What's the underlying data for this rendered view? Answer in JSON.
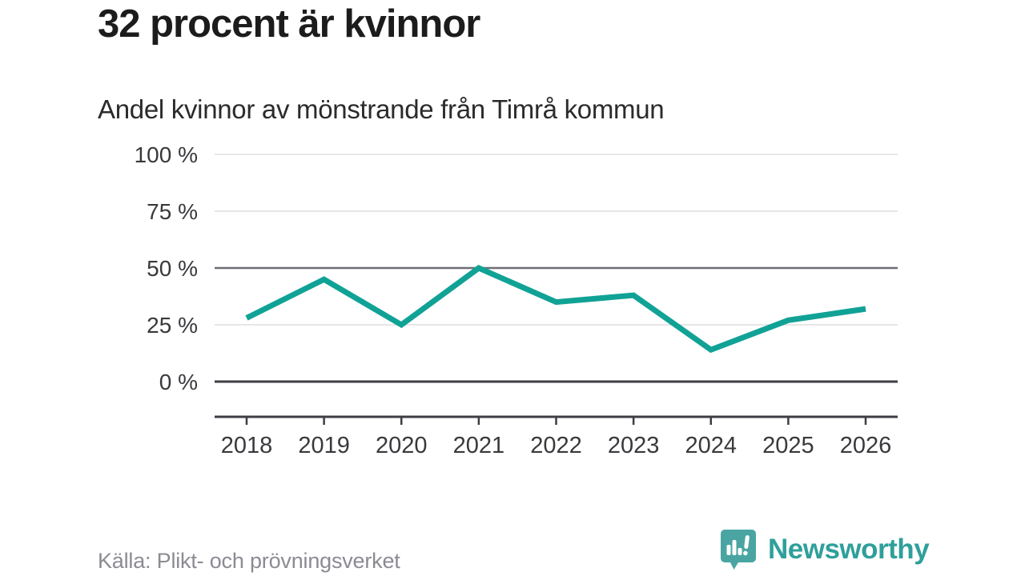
{
  "title": "32 procent är kvinnor",
  "subtitle": "Andel kvinnor av mönstrande från Timrå kommun",
  "source": "Källa: Plikt- och prövningsverket",
  "brand": {
    "name": "Newsworthy",
    "icon": "speech-bubble-bar-chart-icon",
    "icon_color": "#4aa5a2",
    "text_color": "#2f9f9b"
  },
  "chart_data": {
    "type": "line",
    "title": "Andel kvinnor av mönstrande från Timrå kommun",
    "xlabel": "",
    "ylabel": "",
    "x": [
      2018,
      2019,
      2020,
      2021,
      2022,
      2023,
      2024,
      2025,
      2026
    ],
    "series": [
      {
        "name": "Andel kvinnor av mönstrande",
        "values": [
          28,
          45,
          25,
          50,
          35,
          38,
          14,
          27,
          32
        ],
        "unit": "%"
      }
    ],
    "ylim": [
      0,
      100
    ],
    "yticks": [
      {
        "value": 0,
        "label": "0 %"
      },
      {
        "value": 25,
        "label": "25 %"
      },
      {
        "value": 50,
        "label": "50 %"
      },
      {
        "value": 75,
        "label": "75 %"
      },
      {
        "value": 100,
        "label": "100 %"
      }
    ],
    "grid": true,
    "legend_position": "none",
    "line_color": "#11a296",
    "emphasized_gridlines": [
      0,
      50
    ],
    "label_color": "#39393d",
    "gridline_color": "#e7e7e7",
    "emphasis_color_50": "#6e6e76",
    "emphasis_color_0": "#3d3d44"
  }
}
